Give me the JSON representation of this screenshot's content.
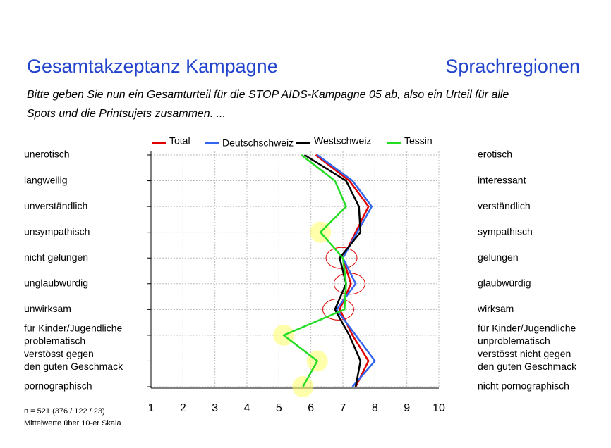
{
  "header": {
    "title": "Gesamtakzeptanz Kampagne",
    "region": "Sprachregionen",
    "subtitle": [
      "Bitte geben Sie nun ein Gesamturteil für die STOP AIDS-Kampagne 05 ab, also ein Urteil für alle",
      "Spots und die Printsujets zusammen. ..."
    ]
  },
  "chart_data": {
    "type": "line",
    "left_labels": [
      [
        "unerotisch"
      ],
      [
        "langweilig"
      ],
      [
        "unverständlich"
      ],
      [
        "unsympathisch"
      ],
      [
        "nicht gelungen"
      ],
      [
        "unglaubwürdig"
      ],
      [
        "unwirksam"
      ],
      [
        "für Kinder/Jugendliche",
        "problematisch"
      ],
      [
        "verstösst gegen",
        "den guten Geschmack"
      ],
      [
        "pornographisch"
      ]
    ],
    "right_labels": [
      [
        "erotisch"
      ],
      [
        "interessant"
      ],
      [
        "verständlich"
      ],
      [
        "sympathisch"
      ],
      [
        "gelungen"
      ],
      [
        "glaubwürdig"
      ],
      [
        "wirksam"
      ],
      [
        "für Kinder/Jugendliche",
        "unproblematisch"
      ],
      [
        "verstösst nicht gegen",
        "den guten Geschmack"
      ],
      [
        "nicht pornographisch"
      ]
    ],
    "series": [
      {
        "name": "Total",
        "color": "#e00000",
        "values": [
          6.15,
          7.2,
          7.8,
          7.4,
          7.0,
          7.25,
          6.9,
          7.3,
          7.8,
          7.4
        ]
      },
      {
        "name": "Deutschschweiz",
        "color": "#3366ee",
        "values": [
          6.2,
          7.3,
          7.9,
          7.45,
          7.0,
          7.4,
          6.8,
          7.4,
          8.0,
          7.3
        ]
      },
      {
        "name": "Westschweiz",
        "color": "#000000",
        "values": [
          5.8,
          7.1,
          7.5,
          7.55,
          6.9,
          7.1,
          6.75,
          7.2,
          7.55,
          7.4
        ]
      },
      {
        "name": "Tessin",
        "color": "#22dd22",
        "values": [
          5.7,
          6.75,
          7.1,
          6.3,
          7.0,
          7.1,
          7.05,
          5.15,
          6.2,
          5.75
        ]
      }
    ],
    "xlim": [
      1,
      10
    ],
    "xticks": [
      1,
      2,
      3,
      4,
      5,
      6,
      7,
      8,
      9,
      10
    ],
    "grid": true
  },
  "footnote": [
    "n = 521 (376 / 122 / 23)",
    "Mittelwerte über 10-er Skala"
  ]
}
